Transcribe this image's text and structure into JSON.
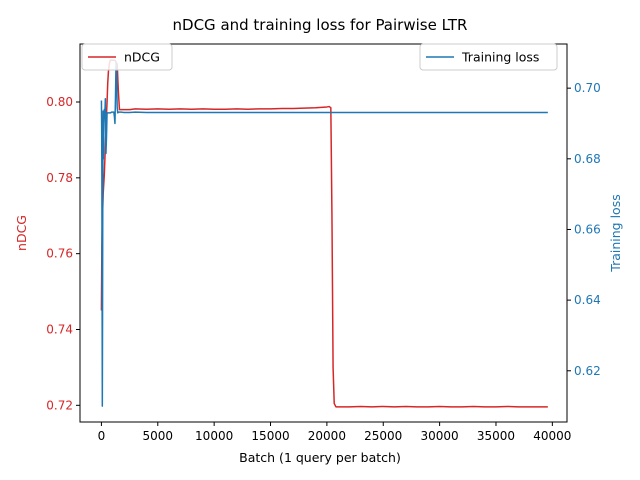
{
  "chart_data": {
    "type": "line",
    "title": "nDCG and training loss for Pairwise LTR",
    "xlabel": "Batch (1 query per batch)",
    "xlim": [
      -1900,
      41300
    ],
    "xticks": [
      0,
      5000,
      10000,
      15000,
      20000,
      25000,
      30000,
      35000,
      40000
    ],
    "xtick_labels": [
      "0",
      "5000",
      "10000",
      "15000",
      "20000",
      "25000",
      "30000",
      "35000",
      "40000"
    ],
    "axes": {
      "left": {
        "label": "nDCG",
        "color": "#d62728",
        "ylim": [
          0.7156,
          0.8153
        ],
        "ticks": [
          0.72,
          0.74,
          0.76,
          0.78,
          0.8
        ],
        "tick_labels": [
          "0.72",
          "0.74",
          "0.76",
          "0.78",
          "0.80"
        ]
      },
      "right": {
        "label": "Training loss",
        "color": "#1f77b4",
        "ylim": [
          0.6055,
          0.7125
        ],
        "ticks": [
          0.62,
          0.64,
          0.66,
          0.68,
          0.7
        ],
        "tick_labels": [
          "0.62",
          "0.64",
          "0.66",
          "0.68",
          "0.70"
        ]
      }
    },
    "legends": [
      {
        "placement": "upper-left",
        "entries": [
          {
            "label": "nDCG",
            "color": "#d62728"
          }
        ]
      },
      {
        "placement": "upper-right",
        "entries": [
          {
            "label": "Training loss",
            "color": "#1f77b4"
          }
        ]
      }
    ],
    "series": [
      {
        "name": "nDCG",
        "axis": "left",
        "color": "#d62728",
        "x": [
          0,
          40,
          80,
          120,
          160,
          200,
          260,
          320,
          380,
          440,
          500,
          560,
          620,
          700,
          780,
          860,
          940,
          1000,
          1100,
          1200,
          1300,
          1400,
          1500,
          1600,
          1800,
          2000,
          2500,
          3000,
          4000,
          5000,
          6000,
          7000,
          8000,
          9000,
          10000,
          11000,
          12000,
          13000,
          14000,
          15000,
          16000,
          17000,
          18000,
          19000,
          19500,
          20000,
          20200,
          20350,
          20450,
          20550,
          20650,
          20800,
          21000,
          22000,
          23000,
          24000,
          25000,
          26000,
          27000,
          28000,
          29000,
          30000,
          31000,
          32000,
          33000,
          34000,
          35000,
          36000,
          37000,
          38000,
          39000,
          39600
        ],
        "y": [
          0.745,
          0.762,
          0.768,
          0.772,
          0.776,
          0.778,
          0.781,
          0.786,
          0.791,
          0.796,
          0.8,
          0.805,
          0.808,
          0.81,
          0.811,
          0.811,
          0.811,
          0.811,
          0.811,
          0.811,
          0.8105,
          0.81,
          0.803,
          0.798,
          0.798,
          0.798,
          0.798,
          0.7982,
          0.7981,
          0.7982,
          0.7981,
          0.7982,
          0.7981,
          0.7982,
          0.7981,
          0.7981,
          0.7982,
          0.7981,
          0.7982,
          0.7982,
          0.7983,
          0.7983,
          0.7984,
          0.7985,
          0.7986,
          0.7987,
          0.7988,
          0.7985,
          0.77,
          0.73,
          0.7205,
          0.7196,
          0.7196,
          0.7196,
          0.7197,
          0.7196,
          0.7197,
          0.7196,
          0.7197,
          0.7196,
          0.7196,
          0.7197,
          0.7196,
          0.7196,
          0.7197,
          0.7196,
          0.7196,
          0.7197,
          0.7196,
          0.7196,
          0.7196,
          0.7196
        ]
      },
      {
        "name": "Training loss",
        "axis": "right",
        "color": "#1f77b4",
        "x": [
          0,
          20,
          40,
          60,
          80,
          100,
          120,
          150,
          180,
          220,
          260,
          300,
          350,
          400,
          450,
          500,
          600,
          700,
          800,
          900,
          1000,
          1100,
          1150,
          1200,
          1250,
          1300,
          1350,
          1400,
          1450,
          1500,
          1600,
          1800,
          2000,
          2500,
          3000,
          4000,
          5000,
          6000,
          7000,
          8000,
          9000,
          10000,
          11000,
          12000,
          13000,
          14000,
          15000,
          16000,
          17000,
          18000,
          19000,
          20000,
          21000,
          22000,
          23000,
          24000,
          25000,
          26000,
          27000,
          28000,
          29000,
          30000,
          31000,
          32000,
          33000,
          34000,
          35000,
          36000,
          37000,
          38000,
          39000,
          39600
        ],
        "y": [
          0.6965,
          0.69,
          0.675,
          0.64,
          0.61,
          0.635,
          0.67,
          0.6935,
          0.68,
          0.69,
          0.694,
          0.692,
          0.697,
          0.6815,
          0.686,
          0.693,
          0.693,
          0.693,
          0.693,
          0.6932,
          0.6932,
          0.6932,
          0.692,
          0.69,
          0.698,
          0.7075,
          0.703,
          0.6945,
          0.693,
          0.6932,
          0.6932,
          0.6932,
          0.6931,
          0.6931,
          0.6932,
          0.6931,
          0.6931,
          0.6931,
          0.6931,
          0.6931,
          0.6931,
          0.6931,
          0.6931,
          0.6931,
          0.6931,
          0.6931,
          0.6931,
          0.6931,
          0.6931,
          0.6931,
          0.6931,
          0.6931,
          0.6931,
          0.6931,
          0.6931,
          0.6931,
          0.6931,
          0.6931,
          0.6931,
          0.6931,
          0.6931,
          0.6931,
          0.6931,
          0.6931,
          0.6931,
          0.6931,
          0.6931,
          0.6931,
          0.6931,
          0.6931,
          0.6931,
          0.6931
        ]
      }
    ]
  }
}
